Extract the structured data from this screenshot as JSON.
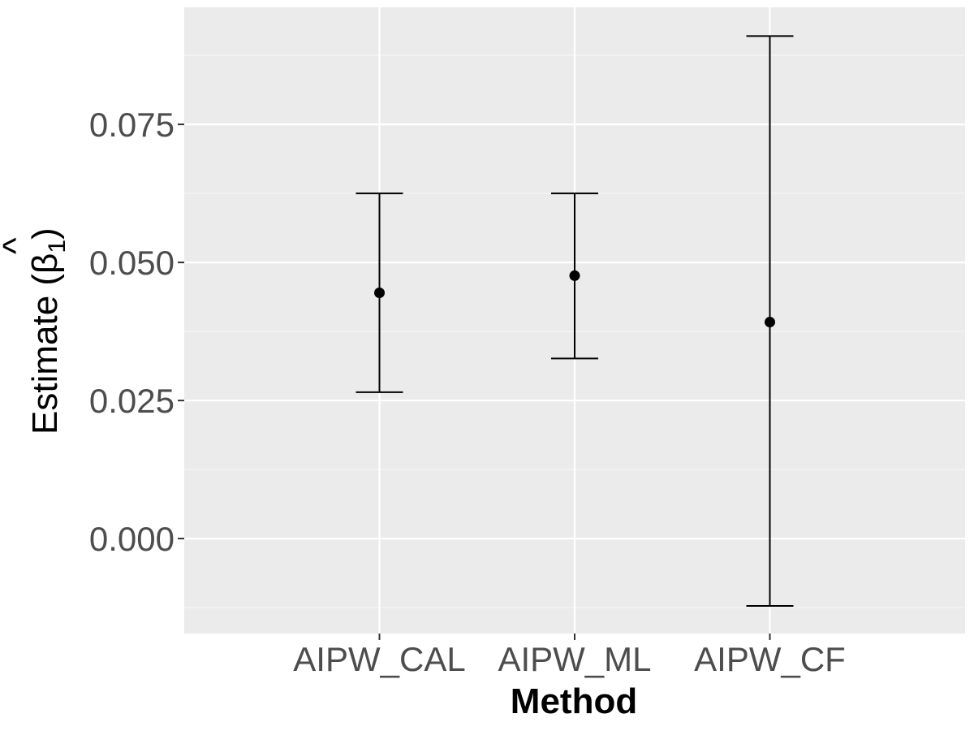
{
  "chart_data": {
    "type": "scatter",
    "title": "",
    "xlabel": "Method",
    "ylabel": {
      "text": "Estimate (",
      "symbol": "β",
      "hat": "^",
      "subscript": "1",
      "close": ")"
    },
    "categories": [
      "AIPW_CAL",
      "AIPW_ML",
      "AIPW_CF"
    ],
    "series": [
      {
        "estimates": [
          0.0445,
          0.0476,
          0.0392
        ],
        "lower": [
          0.0265,
          0.0326,
          -0.0122
        ],
        "upper": [
          0.0625,
          0.0625,
          0.091
        ]
      }
    ],
    "ylim": [
      -0.0172,
      0.0962
    ],
    "yticks": [
      0.0,
      0.025,
      0.05,
      0.075
    ],
    "ytick_labels": [
      "0.000",
      "0.025",
      "0.050",
      "0.075"
    ],
    "grid": true,
    "legend": "none",
    "colors": {
      "panel": "#ebebeb",
      "grid_major": "#ffffff",
      "grid_minor": "#f5f5f5",
      "marks": "#000000",
      "tick_text": "#4d4d4d"
    }
  }
}
